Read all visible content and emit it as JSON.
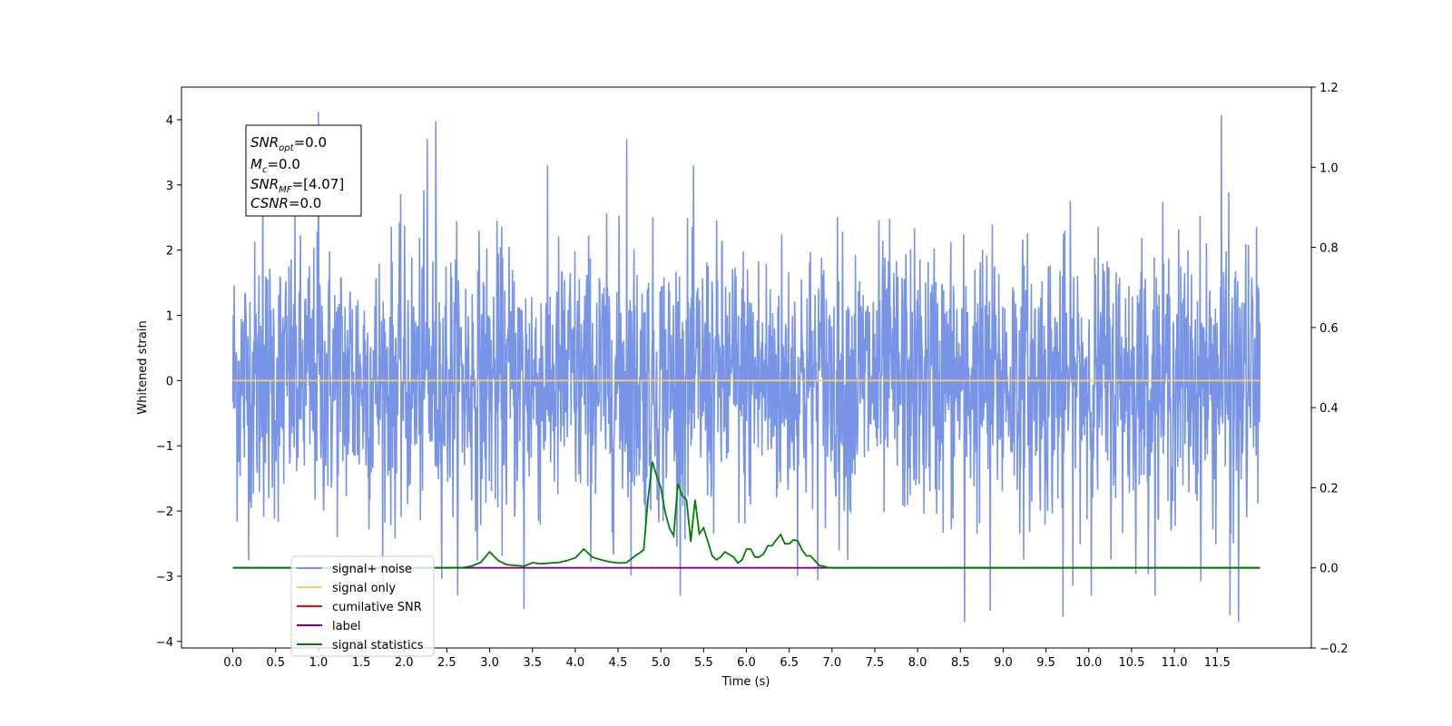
{
  "chart_data": {
    "type": "line",
    "xlabel": "Time (s)",
    "ylabel": "Whitened strain",
    "xlim": [
      -0.6,
      12.6
    ],
    "ylim": [
      -4.1,
      4.5
    ],
    "y2lim": [
      -0.2,
      1.2
    ],
    "x_ticks": [
      "0.0",
      "0.5",
      "1.0",
      "1.5",
      "2.0",
      "2.5",
      "3.0",
      "3.5",
      "4.0",
      "4.5",
      "5.0",
      "5.5",
      "6.0",
      "6.5",
      "7.0",
      "7.5",
      "8.0",
      "8.5",
      "9.0",
      "9.5",
      "10.0",
      "10.5",
      "11.0",
      "11.5"
    ],
    "y_ticks": [
      "4",
      "3",
      "2",
      "1",
      "0",
      "−1",
      "−2",
      "−3",
      "−4"
    ],
    "y2_ticks": [
      "1.2",
      "1.0",
      "0.8",
      "0.6",
      "0.4",
      "0.2",
      "0.0",
      "−0.2"
    ],
    "noise_range": [
      0.0,
      12.0
    ],
    "noise_peaks": [
      {
        "x": 1.0,
        "y": 4.12
      },
      {
        "x": 2.37,
        "y": 3.98
      },
      {
        "x": 11.55,
        "y": 4.07
      },
      {
        "x": 2.27,
        "y": 3.7
      },
      {
        "x": 4.6,
        "y": 3.7
      },
      {
        "x": 0.35,
        "y": 3.6
      },
      {
        "x": 3.4,
        "y": -3.5
      },
      {
        "x": 8.55,
        "y": -3.7
      },
      {
        "x": 11.65,
        "y": -3.6
      },
      {
        "x": 11.75,
        "y": -3.7
      },
      {
        "x": 9.7,
        "y": -3.62
      },
      {
        "x": 8.85,
        "y": -3.53
      }
    ],
    "annotations": [
      "=0.0",
      "=0.0",
      "=[4.07]",
      "=0.0"
    ],
    "series": [
      {
        "name": "signal+ noise",
        "color": "#7894e6",
        "axis": "left"
      },
      {
        "name": "signal only",
        "color": "#ffc878",
        "axis": "left",
        "x": [
          0.0,
          12.0
        ],
        "values": [
          0.0,
          0.0
        ]
      },
      {
        "name": "cumilative SNR",
        "color": "#ff0000",
        "axis": "right"
      },
      {
        "name": "label",
        "color": "#800080",
        "axis": "right",
        "x": [
          0.0,
          12.0
        ],
        "values": [
          0.0,
          0.0
        ]
      },
      {
        "name": "signal statistics",
        "color": "#008000",
        "axis": "right",
        "x": [
          0.0,
          0.5,
          1.0,
          1.5,
          2.0,
          2.5,
          2.7,
          2.8,
          2.9,
          3.0,
          3.1,
          3.2,
          3.3,
          3.4,
          3.5,
          3.6,
          3.7,
          3.8,
          3.9,
          4.0,
          4.1,
          4.2,
          4.3,
          4.4,
          4.5,
          4.6,
          4.7,
          4.75,
          4.8,
          4.85,
          4.9,
          4.95,
          5.0,
          5.05,
          5.1,
          5.15,
          5.2,
          5.25,
          5.3,
          5.35,
          5.4,
          5.45,
          5.5,
          5.55,
          5.6,
          5.65,
          5.7,
          5.75,
          5.8,
          5.85,
          5.9,
          5.95,
          6.0,
          6.05,
          6.1,
          6.15,
          6.2,
          6.25,
          6.3,
          6.35,
          6.4,
          6.45,
          6.5,
          6.55,
          6.6,
          6.65,
          6.7,
          6.75,
          6.8,
          6.85,
          6.9,
          6.95,
          7.0,
          7.05,
          7.1,
          7.15,
          7.2,
          7.3,
          7.4,
          7.5,
          8.0,
          8.5,
          9.0,
          9.5,
          10.0,
          10.5,
          11.0,
          11.5,
          12.0
        ],
        "values": [
          0.0,
          0.0,
          0.0,
          0.0,
          0.0,
          0.0,
          0.001,
          0.005,
          0.014,
          0.04,
          0.018,
          0.008,
          0.006,
          0.004,
          0.013,
          0.01,
          0.012,
          0.013,
          0.018,
          0.025,
          0.047,
          0.027,
          0.02,
          0.015,
          0.012,
          0.013,
          0.03,
          0.037,
          0.045,
          0.17,
          0.265,
          0.23,
          0.2,
          0.14,
          0.1,
          0.08,
          0.21,
          0.18,
          0.17,
          0.065,
          0.17,
          0.085,
          0.1,
          0.065,
          0.03,
          0.02,
          0.027,
          0.04,
          0.033,
          0.027,
          0.012,
          0.02,
          0.047,
          0.047,
          0.027,
          0.027,
          0.035,
          0.055,
          0.055,
          0.07,
          0.083,
          0.06,
          0.06,
          0.07,
          0.067,
          0.045,
          0.03,
          0.03,
          0.018,
          0.006,
          0.004,
          0.001,
          0.0,
          0.0,
          0.0,
          0.0,
          0.0,
          0.0,
          0.0,
          0.0,
          0.0,
          0.0,
          0.0,
          0.0,
          0.0,
          0.0,
          0.0,
          0.0,
          0.0
        ]
      }
    ],
    "legend_position": "lower left"
  }
}
